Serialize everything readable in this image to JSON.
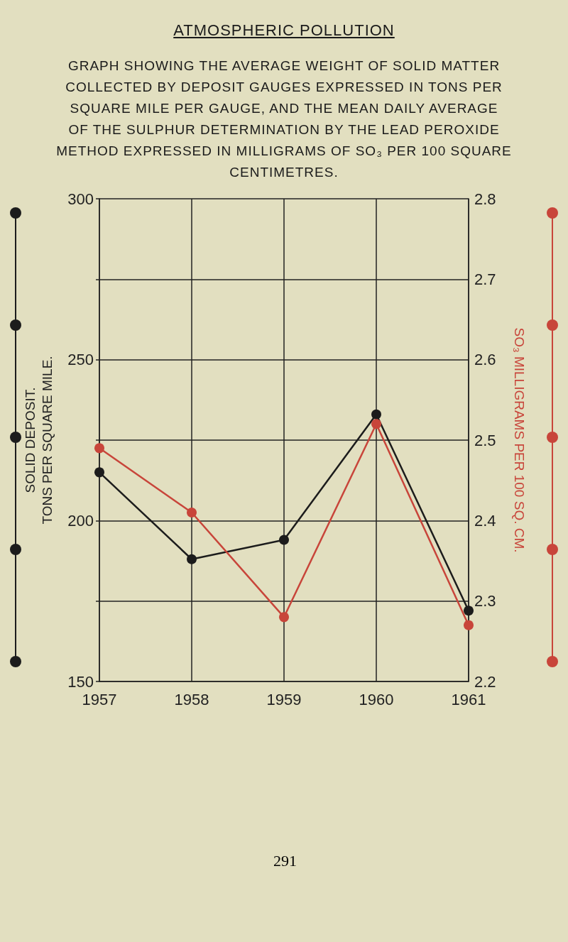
{
  "chart_data": {
    "type": "line",
    "title": "ATMOSPHERIC POLLUTION",
    "subtitle": "GRAPH SHOWING THE AVERAGE WEIGHT OF SOLID MATTER\nCOLLECTED BY DEPOSIT GAUGES EXPRESSED IN TONS PER\nSQUARE MILE PER GAUGE, AND THE MEAN DAILY AVERAGE\nOF THE SULPHUR DETERMINATION BY THE LEAD PEROXIDE\nMETHOD EXPRESSED IN MILLIGRAMS OF SO₃ PER 100 SQUARE\nCENTIMETRES.",
    "ylabel": "SOLID DEPOSIT.\nTONS PER SQUARE MILE.",
    "y2label": "SO₃ MILLIGRAMS PER 100 SQ. CM.",
    "annotations": [
      "291"
    ],
    "x": [
      1957,
      1958,
      1959,
      1960,
      1961
    ],
    "xlim": [
      1957,
      1961
    ],
    "xticks": [
      1957,
      1958,
      1959,
      1960,
      1961
    ],
    "series": [
      {
        "color": "#1c1c1c",
        "values": [
          215,
          188,
          194,
          233,
          172
        ]
      },
      {
        "color": "#c8453a",
        "values": [
          2.49,
          2.41,
          2.28,
          2.52,
          2.27
        ],
        "axis": "y2"
      }
    ],
    "ylim": [
      150,
      300
    ],
    "yticks": [
      150,
      {
        "value": 175,
        "label": null
      },
      200,
      {
        "value": 225,
        "label": null
      },
      250,
      {
        "value": 275,
        "label": null
      },
      300
    ],
    "y2lim": [
      2.2,
      2.8
    ],
    "y2ticks": [
      2.2,
      2.3,
      2.4,
      2.5,
      2.6,
      2.7,
      2.8
    ],
    "grid": true,
    "marker": "circle"
  }
}
